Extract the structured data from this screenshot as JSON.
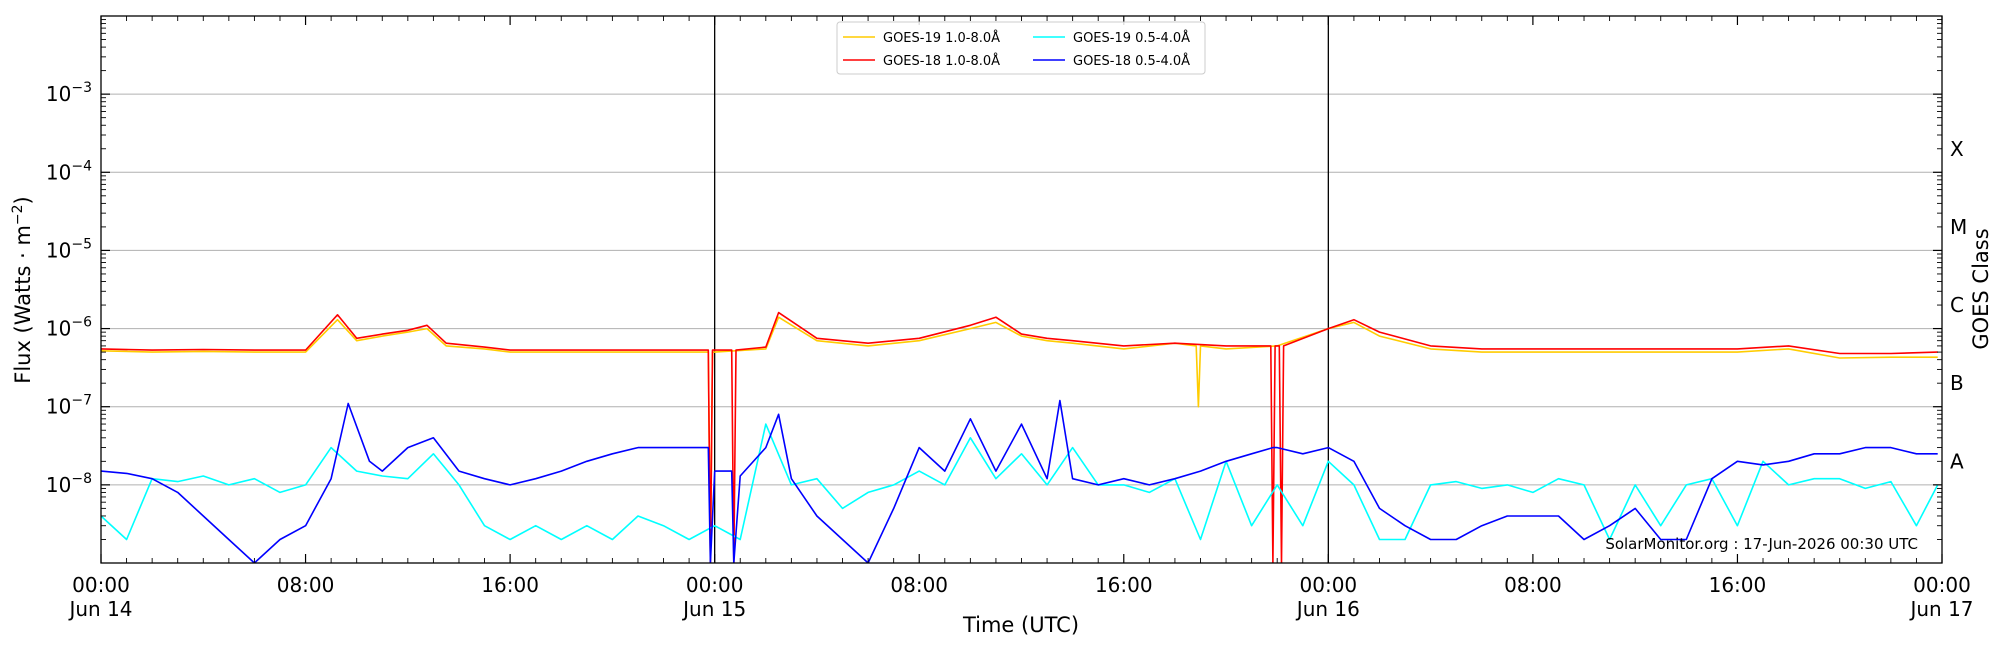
{
  "chart_data": {
    "type": "line",
    "xlabel": "Time (UTC)",
    "ylabel": "Flux (Watts · m",
    "ylabel_sup": "−2",
    "ylabel_tail": ")",
    "y2label": "GOES Class",
    "yscale": "log",
    "ylim": [
      1e-09,
      0.01
    ],
    "xlim": [
      "2026-06-14T00:00",
      "2026-06-17T00:00"
    ],
    "grid": "horizontal at decades",
    "legend_position": "top-center",
    "credit": "SolarMonitor.org : 17-Jun-2026 00:30 UTC",
    "day_separators": [
      "2026-06-15T00:00",
      "2026-06-16T00:00"
    ],
    "x_ticks": [
      {
        "t": "2026-06-14T00:00",
        "line1": "00:00",
        "line2": "Jun 14"
      },
      {
        "t": "2026-06-14T08:00",
        "line1": "08:00",
        "line2": ""
      },
      {
        "t": "2026-06-14T16:00",
        "line1": "16:00",
        "line2": ""
      },
      {
        "t": "2026-06-15T00:00",
        "line1": "00:00",
        "line2": "Jun 15"
      },
      {
        "t": "2026-06-15T08:00",
        "line1": "08:00",
        "line2": ""
      },
      {
        "t": "2026-06-15T16:00",
        "line1": "16:00",
        "line2": ""
      },
      {
        "t": "2026-06-16T00:00",
        "line1": "00:00",
        "line2": "Jun 16"
      },
      {
        "t": "2026-06-16T08:00",
        "line1": "08:00",
        "line2": ""
      },
      {
        "t": "2026-06-16T16:00",
        "line1": "16:00",
        "line2": ""
      },
      {
        "t": "2026-06-17T00:00",
        "line1": "00:00",
        "line2": "Jun 17"
      }
    ],
    "y_ticks": [
      {
        "value": 1e-08,
        "exp": "−8"
      },
      {
        "value": 1e-07,
        "exp": "−7"
      },
      {
        "value": 1e-06,
        "exp": "−6"
      },
      {
        "value": 1e-05,
        "exp": "−5"
      },
      {
        "value": 0.0001,
        "exp": "−4"
      },
      {
        "value": 0.001,
        "exp": "−3"
      }
    ],
    "goes_classes": [
      {
        "label": "A",
        "value": 2e-08
      },
      {
        "label": "B",
        "value": 2e-07
      },
      {
        "label": "C",
        "value": 2e-06
      },
      {
        "label": "M",
        "value": 2e-05
      },
      {
        "label": "X",
        "value": 0.0002
      }
    ],
    "series": [
      {
        "name": "GOES-19 1.0-8.0Å",
        "color": "#ffcc00",
        "x": [
          "2026-06-14T00:00",
          "2026-06-14T02:00",
          "2026-06-14T04:00",
          "2026-06-14T06:00",
          "2026-06-14T08:00",
          "2026-06-14T09:15",
          "2026-06-14T10:00",
          "2026-06-14T11:00",
          "2026-06-14T12:00",
          "2026-06-14T12:45",
          "2026-06-14T13:30",
          "2026-06-14T15:00",
          "2026-06-14T16:00",
          "2026-06-14T18:00",
          "2026-06-14T20:00",
          "2026-06-14T22:00",
          "2026-06-14T23:45",
          "2026-06-14T23:50",
          "2026-06-14T23:55",
          "2026-06-15T00:00",
          "2026-06-15T02:00",
          "2026-06-15T02:30",
          "2026-06-15T04:00",
          "2026-06-15T06:00",
          "2026-06-15T08:00",
          "2026-06-15T10:00",
          "2026-06-15T11:00",
          "2026-06-15T12:00",
          "2026-06-15T13:00",
          "2026-06-15T14:00",
          "2026-06-15T16:00",
          "2026-06-15T18:00",
          "2026-06-15T18:50",
          "2026-06-15T18:55",
          "2026-06-15T19:00",
          "2026-06-15T20:00",
          "2026-06-15T22:00",
          "2026-06-16T00:00",
          "2026-06-16T01:00",
          "2026-06-16T02:00",
          "2026-06-16T04:00",
          "2026-06-16T06:00",
          "2026-06-16T08:00",
          "2026-06-16T10:00",
          "2026-06-16T12:00",
          "2026-06-16T14:00",
          "2026-06-16T16:00",
          "2026-06-16T18:00",
          "2026-06-16T20:00",
          "2026-06-16T22:00",
          "2026-06-16T23:50"
        ],
        "y": [
          5.2e-07,
          5e-07,
          5.1e-07,
          5e-07,
          5e-07,
          1.3e-06,
          7e-07,
          8e-07,
          9e-07,
          1e-06,
          6e-07,
          5.5e-07,
          5e-07,
          5e-07,
          5e-07,
          5e-07,
          5e-07,
          1e-09,
          5e-07,
          5e-07,
          5.5e-07,
          1.4e-06,
          7e-07,
          6e-07,
          7e-07,
          1e-06,
          1.2e-06,
          8e-07,
          7e-07,
          6.5e-07,
          5.5e-07,
          6.5e-07,
          6e-07,
          1e-07,
          6e-07,
          5.5e-07,
          6e-07,
          1e-06,
          1.2e-06,
          8e-07,
          5.5e-07,
          5e-07,
          5e-07,
          5e-07,
          5e-07,
          5e-07,
          5e-07,
          5.5e-07,
          4.2e-07,
          4.3e-07,
          4.3e-07
        ]
      },
      {
        "name": "GOES-18 1.0-8.0Å",
        "color": "#ff0000",
        "x": [
          "2026-06-14T00:00",
          "2026-06-14T02:00",
          "2026-06-14T04:00",
          "2026-06-14T06:00",
          "2026-06-14T08:00",
          "2026-06-14T09:15",
          "2026-06-14T10:00",
          "2026-06-14T11:00",
          "2026-06-14T12:00",
          "2026-06-14T12:45",
          "2026-06-14T13:30",
          "2026-06-14T15:00",
          "2026-06-14T16:00",
          "2026-06-14T18:00",
          "2026-06-14T20:00",
          "2026-06-14T22:00",
          "2026-06-14T23:45",
          "2026-06-14T23:50",
          "2026-06-14T23:55",
          "2026-06-15T00:40",
          "2026-06-15T00:45",
          "2026-06-15T00:50",
          "2026-06-15T02:00",
          "2026-06-15T02:30",
          "2026-06-15T04:00",
          "2026-06-15T06:00",
          "2026-06-15T08:00",
          "2026-06-15T10:00",
          "2026-06-15T11:00",
          "2026-06-15T12:00",
          "2026-06-15T13:00",
          "2026-06-15T14:00",
          "2026-06-15T16:00",
          "2026-06-15T18:00",
          "2026-06-15T20:00",
          "2026-06-15T21:45",
          "2026-06-15T21:50",
          "2026-06-15T21:55",
          "2026-06-15T22:05",
          "2026-06-15T22:10",
          "2026-06-15T22:15",
          "2026-06-16T00:00",
          "2026-06-16T01:00",
          "2026-06-16T02:00",
          "2026-06-16T04:00",
          "2026-06-16T06:00",
          "2026-06-16T08:00",
          "2026-06-16T10:00",
          "2026-06-16T12:00",
          "2026-06-16T14:00",
          "2026-06-16T16:00",
          "2026-06-16T18:00",
          "2026-06-16T20:00",
          "2026-06-16T22:00",
          "2026-06-16T23:50"
        ],
        "y": [
          5.5e-07,
          5.3e-07,
          5.4e-07,
          5.3e-07,
          5.3e-07,
          1.5e-06,
          7.5e-07,
          8.5e-07,
          9.5e-07,
          1.1e-06,
          6.5e-07,
          5.8e-07,
          5.3e-07,
          5.3e-07,
          5.3e-07,
          5.3e-07,
          5.3e-07,
          1e-09,
          5.3e-07,
          5.3e-07,
          1e-09,
          5.3e-07,
          5.8e-07,
          1.6e-06,
          7.5e-07,
          6.5e-07,
          7.5e-07,
          1.1e-06,
          1.4e-06,
          8.5e-07,
          7.5e-07,
          7e-07,
          6e-07,
          6.5e-07,
          6e-07,
          6e-07,
          1e-09,
          6e-07,
          6e-07,
          1e-09,
          6e-07,
          1e-06,
          1.3e-06,
          9e-07,
          6e-07,
          5.5e-07,
          5.5e-07,
          5.5e-07,
          5.5e-07,
          5.5e-07,
          5.5e-07,
          6e-07,
          4.8e-07,
          4.8e-07,
          5e-07
        ]
      },
      {
        "name": "GOES-19 0.5-4.0Å",
        "color": "#00ffff",
        "x": [
          "2026-06-14T00:00",
          "2026-06-14T01:00",
          "2026-06-14T02:00",
          "2026-06-14T03:00",
          "2026-06-14T04:00",
          "2026-06-14T05:00",
          "2026-06-14T06:00",
          "2026-06-14T07:00",
          "2026-06-14T08:00",
          "2026-06-14T09:00",
          "2026-06-14T10:00",
          "2026-06-14T11:00",
          "2026-06-14T12:00",
          "2026-06-14T13:00",
          "2026-06-14T14:00",
          "2026-06-14T15:00",
          "2026-06-14T16:00",
          "2026-06-14T17:00",
          "2026-06-14T18:00",
          "2026-06-14T19:00",
          "2026-06-14T20:00",
          "2026-06-14T21:00",
          "2026-06-14T22:00",
          "2026-06-14T23:00",
          "2026-06-15T00:00",
          "2026-06-15T01:00",
          "2026-06-15T02:00",
          "2026-06-15T03:00",
          "2026-06-15T04:00",
          "2026-06-15T05:00",
          "2026-06-15T06:00",
          "2026-06-15T07:00",
          "2026-06-15T08:00",
          "2026-06-15T09:00",
          "2026-06-15T10:00",
          "2026-06-15T11:00",
          "2026-06-15T12:00",
          "2026-06-15T13:00",
          "2026-06-15T14:00",
          "2026-06-15T15:00",
          "2026-06-15T16:00",
          "2026-06-15T17:00",
          "2026-06-15T18:00",
          "2026-06-15T19:00",
          "2026-06-15T20:00",
          "2026-06-15T21:00",
          "2026-06-15T22:00",
          "2026-06-15T23:00",
          "2026-06-16T00:00",
          "2026-06-16T01:00",
          "2026-06-16T02:00",
          "2026-06-16T03:00",
          "2026-06-16T04:00",
          "2026-06-16T05:00",
          "2026-06-16T06:00",
          "2026-06-16T07:00",
          "2026-06-16T08:00",
          "2026-06-16T09:00",
          "2026-06-16T10:00",
          "2026-06-16T11:00",
          "2026-06-16T12:00",
          "2026-06-16T13:00",
          "2026-06-16T14:00",
          "2026-06-16T15:00",
          "2026-06-16T16:00",
          "2026-06-16T17:00",
          "2026-06-16T18:00",
          "2026-06-16T19:00",
          "2026-06-16T20:00",
          "2026-06-16T21:00",
          "2026-06-16T22:00",
          "2026-06-16T23:00",
          "2026-06-16T23:50"
        ],
        "y": [
          4e-09,
          2e-09,
          1.2e-08,
          1.1e-08,
          1.3e-08,
          1e-08,
          1.2e-08,
          8e-09,
          1e-08,
          3e-08,
          1.5e-08,
          1.3e-08,
          1.2e-08,
          2.5e-08,
          1e-08,
          3e-09,
          2e-09,
          3e-09,
          2e-09,
          3e-09,
          2e-09,
          4e-09,
          3e-09,
          2e-09,
          3e-09,
          2e-09,
          6e-08,
          1e-08,
          1.2e-08,
          5e-09,
          8e-09,
          1e-08,
          1.5e-08,
          1e-08,
          4e-08,
          1.2e-08,
          2.5e-08,
          1e-08,
          3e-08,
          1e-08,
          1e-08,
          8e-09,
          1.2e-08,
          2e-09,
          2e-08,
          3e-09,
          1e-08,
          3e-09,
          2e-08,
          1e-08,
          2e-09,
          2e-09,
          1e-08,
          1.1e-08,
          9e-09,
          1e-08,
          8e-09,
          1.2e-08,
          1e-08,
          2e-09,
          1e-08,
          3e-09,
          1e-08,
          1.2e-08,
          3e-09,
          2e-08,
          1e-08,
          1.2e-08,
          1.2e-08,
          9e-09,
          1.1e-08,
          3e-09,
          1e-08
        ]
      },
      {
        "name": "GOES-18 0.5-4.0Å",
        "color": "#0000ff",
        "x": [
          "2026-06-14T00:00",
          "2026-06-14T01:00",
          "2026-06-14T02:00",
          "2026-06-14T03:00",
          "2026-06-14T04:00",
          "2026-06-14T05:00",
          "2026-06-14T06:00",
          "2026-06-14T07:00",
          "2026-06-14T08:00",
          "2026-06-14T09:00",
          "2026-06-14T09:40",
          "2026-06-14T10:30",
          "2026-06-14T11:00",
          "2026-06-14T12:00",
          "2026-06-14T13:00",
          "2026-06-14T14:00",
          "2026-06-14T15:00",
          "2026-06-14T16:00",
          "2026-06-14T17:00",
          "2026-06-14T18:00",
          "2026-06-14T19:00",
          "2026-06-14T20:00",
          "2026-06-14T21:00",
          "2026-06-14T22:00",
          "2026-06-14T23:00",
          "2026-06-14T23:45",
          "2026-06-14T23:50",
          "2026-06-15T00:00",
          "2026-06-15T00:40",
          "2026-06-15T00:45",
          "2026-06-15T01:00",
          "2026-06-15T02:00",
          "2026-06-15T02:30",
          "2026-06-15T03:00",
          "2026-06-15T04:00",
          "2026-06-15T05:00",
          "2026-06-15T06:00",
          "2026-06-15T07:00",
          "2026-06-15T08:00",
          "2026-06-15T09:00",
          "2026-06-15T10:00",
          "2026-06-15T11:00",
          "2026-06-15T12:00",
          "2026-06-15T13:00",
          "2026-06-15T13:30",
          "2026-06-15T14:00",
          "2026-06-15T15:00",
          "2026-06-15T16:00",
          "2026-06-15T17:00",
          "2026-06-15T18:00",
          "2026-06-15T19:00",
          "2026-06-15T20:00",
          "2026-06-15T21:00",
          "2026-06-15T21:50",
          "2026-06-15T22:00",
          "2026-06-15T23:00",
          "2026-06-16T00:00",
          "2026-06-16T01:00",
          "2026-06-16T02:00",
          "2026-06-16T03:00",
          "2026-06-16T04:00",
          "2026-06-16T05:00",
          "2026-06-16T06:00",
          "2026-06-16T07:00",
          "2026-06-16T08:00",
          "2026-06-16T09:00",
          "2026-06-16T10:00",
          "2026-06-16T11:00",
          "2026-06-16T12:00",
          "2026-06-16T13:00",
          "2026-06-16T14:00",
          "2026-06-16T15:00",
          "2026-06-16T16:00",
          "2026-06-16T17:00",
          "2026-06-16T18:00",
          "2026-06-16T19:00",
          "2026-06-16T20:00",
          "2026-06-16T21:00",
          "2026-06-16T22:00",
          "2026-06-16T23:00",
          "2026-06-16T23:50"
        ],
        "y": [
          1.5e-08,
          1.4e-08,
          1.2e-08,
          8e-09,
          4e-09,
          2e-09,
          1e-09,
          2e-09,
          3e-09,
          1.2e-08,
          1.1e-07,
          2e-08,
          1.5e-08,
          3e-08,
          4e-08,
          1.5e-08,
          1.2e-08,
          1e-08,
          1.2e-08,
          1.5e-08,
          2e-08,
          2.5e-08,
          3e-08,
          3e-08,
          3e-08,
          3e-08,
          1e-09,
          1.5e-08,
          1.5e-08,
          1e-09,
          1.3e-08,
          3e-08,
          8e-08,
          1.2e-08,
          4e-09,
          2e-09,
          1e-09,
          5e-09,
          3e-08,
          1.5e-08,
          7e-08,
          1.5e-08,
          6e-08,
          1.2e-08,
          1.2e-07,
          1.2e-08,
          1e-08,
          1.2e-08,
          1e-08,
          1.2e-08,
          1.5e-08,
          2e-08,
          2.5e-08,
          3e-08,
          3e-08,
          2.5e-08,
          3e-08,
          2e-08,
          5e-09,
          3e-09,
          2e-09,
          2e-09,
          3e-09,
          4e-09,
          4e-09,
          4e-09,
          2e-09,
          3e-09,
          5e-09,
          2e-09,
          2e-09,
          1.2e-08,
          2e-08,
          1.8e-08,
          2e-08,
          2.5e-08,
          2.5e-08,
          3e-08,
          3e-08,
          2.5e-08,
          2.5e-08
        ]
      }
    ]
  }
}
